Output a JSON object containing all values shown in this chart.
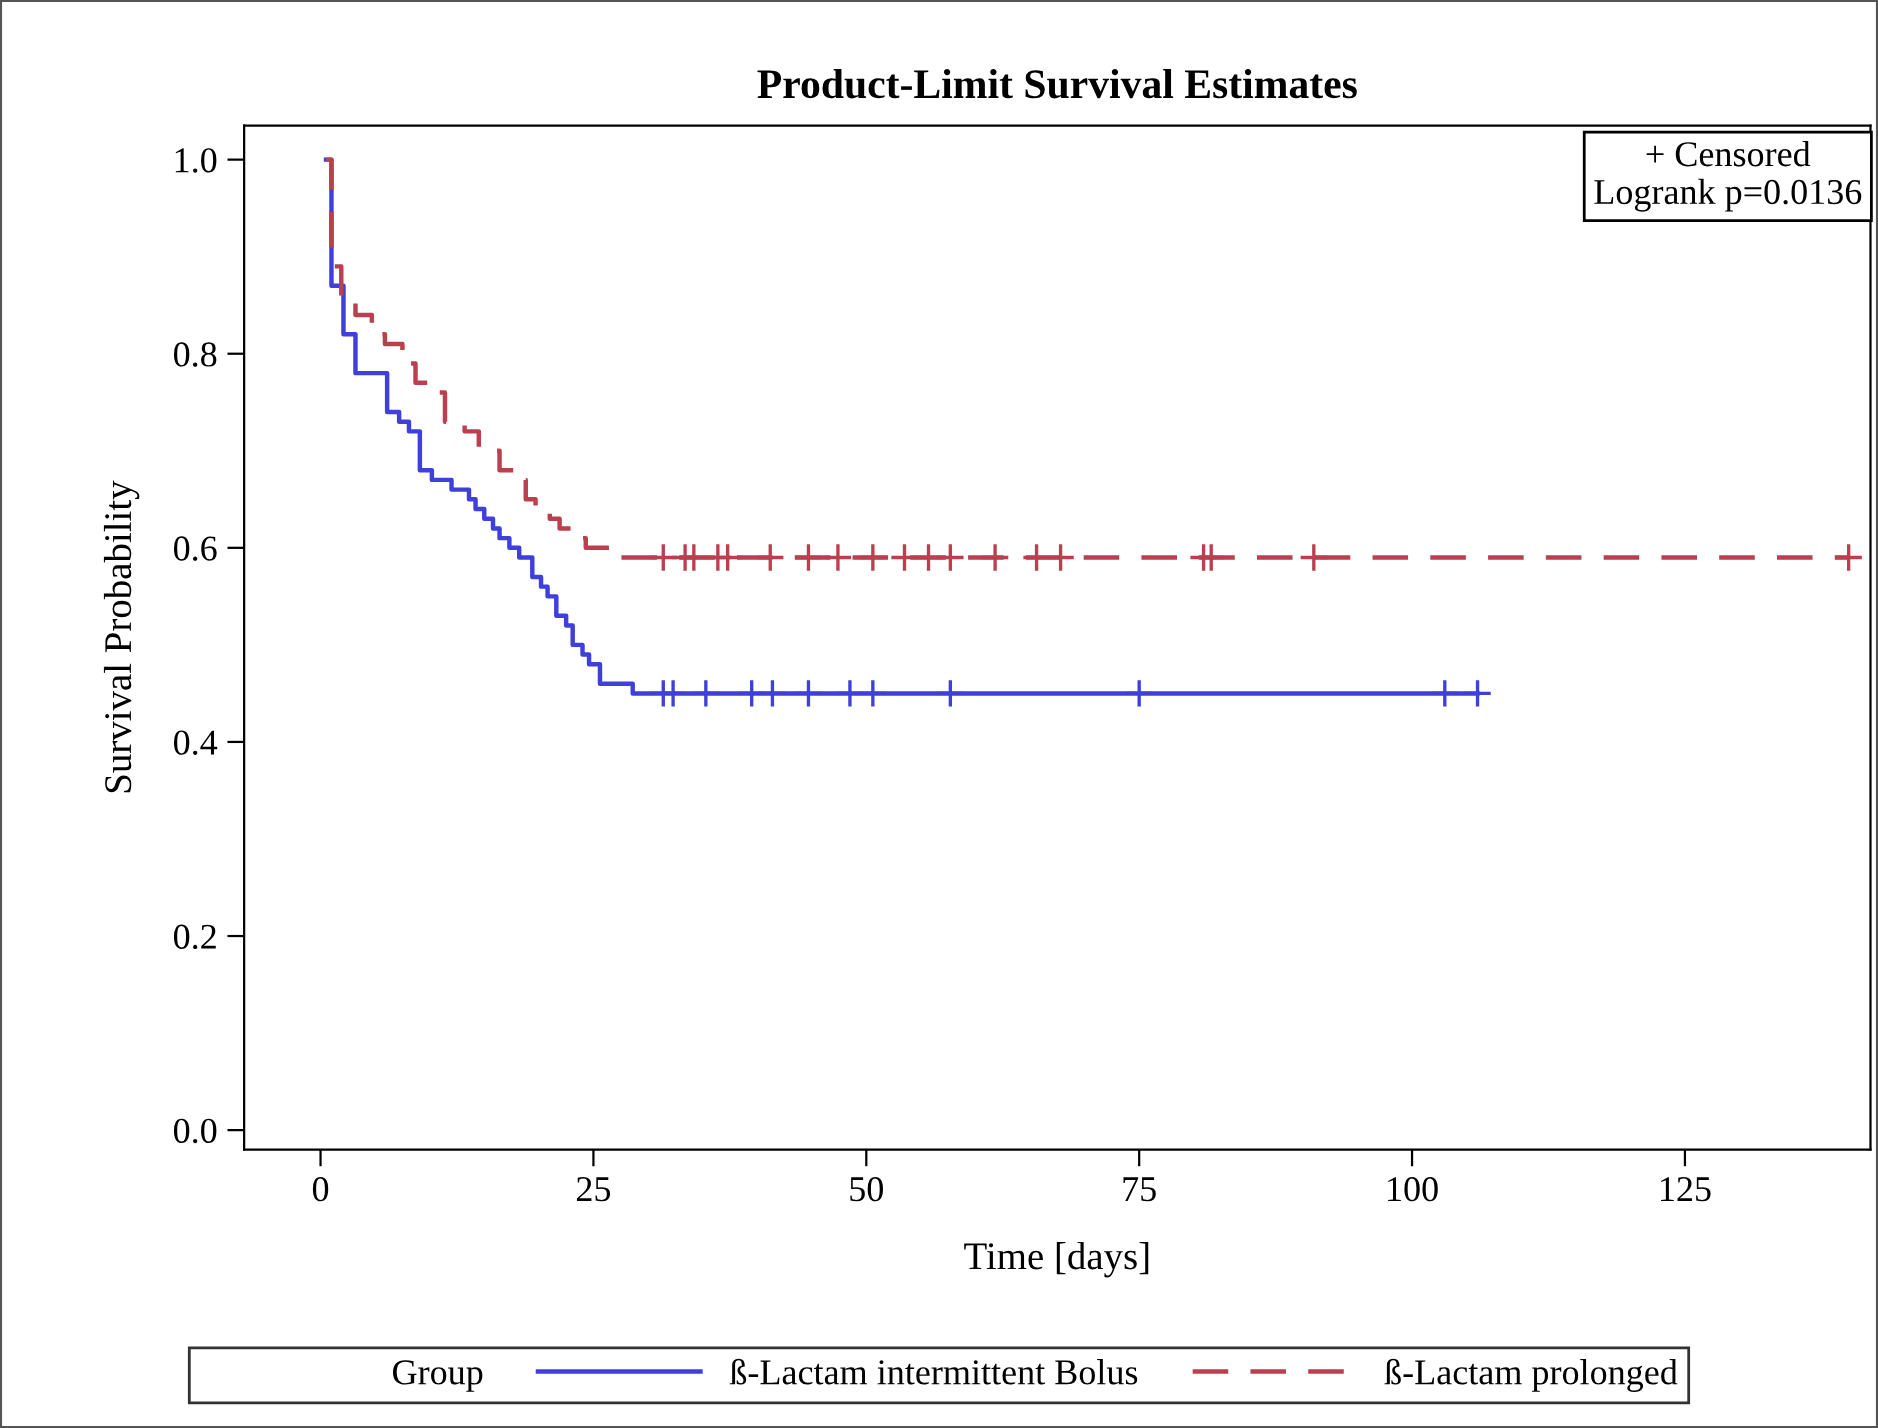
{
  "chart_data": {
    "type": "step",
    "title": "Product-Limit Survival Estimates",
    "xlabel": "Time [days]",
    "ylabel": "Survival Probability",
    "legend_title": "Group",
    "annotations": [
      "+ Censored",
      "Logrank p=0.0136"
    ],
    "xlim": [
      -7,
      142
    ],
    "ylim": [
      -0.02,
      1.035
    ],
    "xticks": [
      0,
      25,
      50,
      75,
      100,
      125
    ],
    "yticks": [
      {
        "value": 0,
        "label": "0.0"
      },
      {
        "value": 0.2,
        "label": "0.2"
      },
      {
        "value": 0.4,
        "label": "0.4"
      },
      {
        "value": 0.6,
        "label": "0.6"
      },
      {
        "value": 0.8,
        "label": "0.8"
      },
      {
        "value": 1,
        "label": "1.0"
      }
    ],
    "grid": false,
    "legend": "bottom",
    "series": [
      {
        "name": "ß-Lactam intermittent Bolus",
        "color": "#3f3fd9",
        "line_style": "solid",
        "x": [
          0.5,
          1.0,
          2.1,
          3.2,
          6.1,
          7.2,
          8.1,
          9.1,
          10.2,
          12,
          13.6,
          14.2,
          15,
          15.8,
          16.4,
          17.3,
          18.2,
          19.4,
          20.2,
          20.8,
          21.6,
          22.5,
          23.1,
          24,
          24.6,
          25.6,
          26.5,
          28.6,
          106
        ],
        "values": [
          1.0,
          0.87,
          0.82,
          0.78,
          0.74,
          0.73,
          0.72,
          0.68,
          0.67,
          0.66,
          0.65,
          0.64,
          0.63,
          0.62,
          0.61,
          0.6,
          0.59,
          0.57,
          0.56,
          0.55,
          0.53,
          0.52,
          0.5,
          0.49,
          0.48,
          0.46,
          0.46,
          0.45,
          0.45
        ]
      },
      {
        "name": "ß-Lactam prolonged",
        "color": "#b8404f",
        "line_style": "dashed",
        "x": [
          0.5,
          1.0,
          1.9,
          3.2,
          4.7,
          5.9,
          7.5,
          8.7,
          10.8,
          11.4,
          13.2,
          14.5,
          16.4,
          17.8,
          18.8,
          19.7,
          21,
          21.9,
          23.4,
          24.3,
          25.6,
          27.4,
          29.2,
          140
        ],
        "values": [
          1.0,
          0.89,
          0.86,
          0.84,
          0.82,
          0.81,
          0.79,
          0.77,
          0.76,
          0.73,
          0.72,
          0.7,
          0.68,
          0.67,
          0.65,
          0.64,
          0.63,
          0.62,
          0.61,
          0.6,
          0.6,
          0.59,
          0.59,
          0.59
        ]
      },
      {
        "type": "scatter",
        "marker": "cross",
        "color": "#3f3fd9",
        "x": [
          31.4,
          32.3,
          35.3,
          39.5,
          41.4,
          44.7,
          48.5,
          50.6,
          57.7,
          75,
          103,
          106
        ],
        "values": [
          0.45,
          0.45,
          0.45,
          0.45,
          0.45,
          0.45,
          0.45,
          0.45,
          0.45,
          0.45,
          0.45,
          0.45
        ]
      },
      {
        "type": "scatter",
        "marker": "cross",
        "color": "#b8404f",
        "x": [
          31.4,
          33.4,
          34.2,
          36.4,
          37.3,
          41.2,
          44.7,
          47.4,
          50.6,
          53.5,
          55.7,
          57.7,
          61.8,
          65.6,
          67.8,
          80.9,
          81.6,
          91,
          140
        ],
        "values": [
          0.59,
          0.59,
          0.59,
          0.59,
          0.59,
          0.59,
          0.59,
          0.59,
          0.59,
          0.59,
          0.59,
          0.59,
          0.59,
          0.59,
          0.59,
          0.59,
          0.59,
          0.59,
          0.59
        ]
      }
    ]
  }
}
